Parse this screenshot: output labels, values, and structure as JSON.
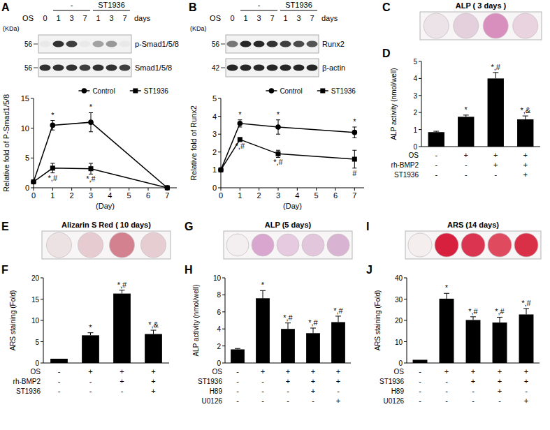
{
  "chart_data": [
    {
      "type": "blot",
      "panel": "A",
      "groups": [
        {
          "label": "-"
        },
        {
          "label": "ST1936"
        }
      ],
      "row_label": "OS",
      "lanes": [
        "0",
        "1",
        "3",
        "7",
        "1",
        "3",
        "7"
      ],
      "lane_unit": "days",
      "mw_label": "(KDa)",
      "rows": [
        {
          "name": "p-Smad1/5/8",
          "mw": "56",
          "bands": [
            0.04,
            0.85,
            0.8,
            0.04,
            0.35,
            0.4,
            0.04
          ]
        },
        {
          "name": "Smad1/5/8",
          "mw": "56",
          "bands": [
            0.85,
            0.85,
            0.85,
            0.8,
            0.85,
            0.85,
            0.8
          ]
        }
      ]
    },
    {
      "type": "line",
      "x": [
        0,
        1,
        3,
        7
      ],
      "xlim": [
        0,
        7.5
      ],
      "xticks": [
        0,
        1,
        2,
        3,
        4,
        5,
        6,
        7
      ],
      "ylim": [
        0,
        15
      ],
      "yticks": [
        0,
        5,
        10,
        15
      ],
      "x_label": "(Day)",
      "y_label": "Relative fold of P-Smad1/5/8",
      "legend": "upper right",
      "series": [
        {
          "name": "Control",
          "color": "#000000",
          "marker": "circle",
          "values": [
            1,
            10.5,
            11,
            0
          ],
          "errors": [
            0,
            0.8,
            1.6,
            0
          ],
          "annotations": [
            null,
            "*",
            "*",
            null
          ]
        },
        {
          "name": "ST1936",
          "color": "#000000",
          "marker": "square",
          "values": [
            1,
            3.3,
            3.2,
            0
          ],
          "errors": [
            0,
            0.8,
            0.9,
            0
          ],
          "annotations": [
            null,
            "*,#",
            "*,#",
            null
          ]
        }
      ]
    },
    {
      "type": "blot",
      "panel": "B",
      "groups": [
        {
          "label": "-"
        },
        {
          "label": "ST1936"
        }
      ],
      "row_label": "OS",
      "lanes": [
        "0",
        "1",
        "3",
        "7",
        "1",
        "3",
        "7"
      ],
      "lane_unit": "days",
      "mw_label": "(KDa)",
      "rows": [
        {
          "name": "Runx2",
          "mw": "56",
          "bands": [
            0.55,
            0.9,
            0.9,
            0.85,
            0.8,
            0.75,
            0.7
          ]
        },
        {
          "name": "β-actin",
          "mw": "42",
          "bands": [
            0.9,
            0.9,
            0.9,
            0.9,
            0.9,
            0.9,
            0.9
          ]
        }
      ]
    },
    {
      "type": "line",
      "x": [
        0,
        1,
        3,
        7
      ],
      "xlim": [
        0,
        7.5
      ],
      "xticks": [
        0,
        1,
        2,
        3,
        4,
        5,
        6,
        7
      ],
      "ylim": [
        0,
        5
      ],
      "yticks": [
        0,
        1,
        2,
        3,
        4,
        5
      ],
      "x_label": "(Day)",
      "y_label": "Relative fold of Runx2",
      "legend": "upper right",
      "series": [
        {
          "name": "Control",
          "color": "#000000",
          "marker": "circle",
          "values": [
            1,
            3.6,
            3.4,
            3.1
          ],
          "errors": [
            0,
            0.2,
            0.4,
            0.3
          ],
          "annotations": [
            null,
            "*",
            "*",
            "*"
          ]
        },
        {
          "name": "ST1936",
          "color": "#000000",
          "marker": "square",
          "values": [
            1,
            2.7,
            1.9,
            1.6
          ],
          "errors": [
            0,
            0.1,
            0.2,
            0.5
          ],
          "annotations": [
            null,
            "*,#",
            "*,#",
            "#"
          ]
        }
      ]
    },
    {
      "type": "wells",
      "panel": "C",
      "title": "ALP ( 3 days )",
      "colors": [
        "#ece3e8",
        "#e4cfdc",
        "#d98fbd",
        "#e8d3df"
      ]
    },
    {
      "type": "bar",
      "panel": "D",
      "categories": [
        null,
        null,
        null,
        null
      ],
      "values": [
        0.85,
        1.75,
        4.0,
        1.6
      ],
      "errors": [
        0.05,
        0.1,
        0.35,
        0.2
      ],
      "annotations": [
        null,
        "*",
        "*,#",
        "*,&"
      ],
      "color": "#000000",
      "ylim": [
        0,
        5
      ],
      "yticks": [
        0,
        1,
        2,
        3,
        4,
        5
      ],
      "y_label": "ALP activity (nmol/well)",
      "treatments": [
        {
          "name": "OS",
          "signs": [
            "-",
            "+",
            "+",
            "+"
          ]
        },
        {
          "name": "rh-BMP2",
          "signs": [
            "-",
            "-",
            "+",
            "+"
          ]
        },
        {
          "name": "ST1936",
          "signs": [
            "-",
            "-",
            "-",
            "+"
          ]
        }
      ]
    },
    {
      "type": "wells",
      "panel": "E",
      "title": "Alizarin S Red ( 10 days)",
      "colors": [
        "#ede2e3",
        "#e6ccd1",
        "#d3808f",
        "#e5cdd2"
      ]
    },
    {
      "type": "bar",
      "panel": "F",
      "categories": [
        null,
        null,
        null,
        null
      ],
      "values": [
        1,
        6.5,
        16.3,
        6.8
      ],
      "errors": [
        0,
        0.6,
        0.8,
        0.9
      ],
      "annotations": [
        null,
        "*",
        "*,#",
        "*,&"
      ],
      "color": "#000000",
      "ylim": [
        0,
        20
      ],
      "yticks": [
        0,
        5,
        10,
        15,
        20
      ],
      "y_label": "ARS staining (Fold)",
      "treatments": [
        {
          "name": "OS",
          "signs": [
            "-",
            "+",
            "+",
            "+"
          ]
        },
        {
          "name": "rh-BMP2",
          "signs": [
            "-",
            "-",
            "+",
            "+"
          ]
        },
        {
          "name": "ST1936",
          "signs": [
            "-",
            "-",
            "-",
            "+"
          ]
        }
      ]
    },
    {
      "type": "wells",
      "panel": "G",
      "title": "ALP (5 days)",
      "colors": [
        "#f3eff1",
        "#d8a6cf",
        "#e6cae0",
        "#e2c6dc",
        "#d9b3d2"
      ]
    },
    {
      "type": "bar",
      "panel": "H",
      "categories": [
        null,
        null,
        null,
        null,
        null
      ],
      "values": [
        1.6,
        7.6,
        4.0,
        3.5,
        4.8
      ],
      "errors": [
        0.1,
        0.9,
        0.7,
        0.6,
        0.7
      ],
      "annotations": [
        null,
        "*",
        "*,#",
        "*,#",
        "*,#"
      ],
      "color": "#000000",
      "ylim": [
        0,
        10
      ],
      "yticks": [
        0,
        2,
        4,
        6,
        8,
        10
      ],
      "y_label": "ALP activity (nmol/well)",
      "treatments": [
        {
          "name": "OS",
          "signs": [
            "-",
            "+",
            "+",
            "+",
            "+"
          ]
        },
        {
          "name": "ST1936",
          "signs": [
            "-",
            "-",
            "+",
            "+",
            "+"
          ]
        },
        {
          "name": "H89",
          "signs": [
            "-",
            "-",
            "-",
            "+",
            "-"
          ]
        },
        {
          "name": "U0126",
          "signs": [
            "-",
            "-",
            "-",
            "-",
            "+"
          ]
        }
      ]
    },
    {
      "type": "wells",
      "panel": "I",
      "title": "ARS (14 days)",
      "colors": [
        "#f4eeee",
        "#d6203e",
        "#db3450",
        "#df4a5f",
        "#d92f47"
      ]
    },
    {
      "type": "bar",
      "panel": "J",
      "categories": [
        null,
        null,
        null,
        null,
        null
      ],
      "values": [
        1.5,
        30.2,
        20.2,
        19,
        22.8
      ],
      "errors": [
        0,
        2.5,
        1.5,
        2.5,
        2.8
      ],
      "annotations": [
        null,
        "*",
        "*,#",
        "*,#",
        "*,#"
      ],
      "color": "#000000",
      "ylim": [
        0,
        40
      ],
      "yticks": [
        0,
        10,
        20,
        30,
        40
      ],
      "y_label": "ARS staining (Fold)",
      "treatments": [
        {
          "name": "OS",
          "signs": [
            "-",
            "+",
            "+",
            "+",
            "+"
          ]
        },
        {
          "name": "ST1936",
          "signs": [
            "-",
            "-",
            "+",
            "+",
            "+"
          ]
        },
        {
          "name": "H89",
          "signs": [
            "-",
            "-",
            "-",
            "+",
            "-"
          ]
        },
        {
          "name": "U0126",
          "signs": [
            "-",
            "-",
            "-",
            "-",
            "+"
          ]
        }
      ]
    }
  ]
}
